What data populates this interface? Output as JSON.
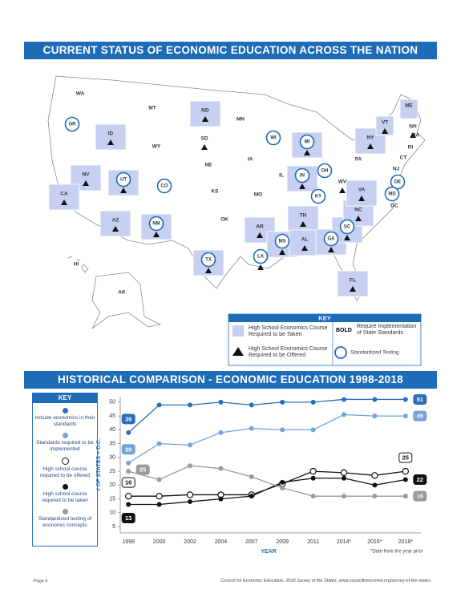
{
  "header": {
    "title": "CURRENT STATUS OF ECONOMIC EDUCATION ACROSS THE NATION"
  },
  "map": {
    "states": [
      {
        "label": "WA"
      },
      {
        "label": "OR",
        "testing": true
      },
      {
        "label": "ID",
        "taken": true,
        "offered": true
      },
      {
        "label": "MT"
      },
      {
        "label": "WY"
      },
      {
        "label": "NV",
        "taken": true,
        "offered": true
      },
      {
        "label": "CA",
        "taken": true,
        "offered": true
      },
      {
        "label": "UT",
        "taken": true,
        "offered": true,
        "testing": true
      },
      {
        "label": "CO",
        "testing": true
      },
      {
        "label": "AZ",
        "taken": true,
        "offered": true
      },
      {
        "label": "NM",
        "taken": true,
        "offered": true,
        "testing": true
      },
      {
        "label": "ND",
        "taken": true,
        "offered": true
      },
      {
        "label": "SD",
        "offered": true
      },
      {
        "label": "NE"
      },
      {
        "label": "KS"
      },
      {
        "label": "OK"
      },
      {
        "label": "TX",
        "taken": true,
        "offered": true,
        "testing": true
      },
      {
        "label": "MN"
      },
      {
        "label": "IA"
      },
      {
        "label": "MO"
      },
      {
        "label": "AR",
        "taken": true,
        "offered": true
      },
      {
        "label": "LA",
        "offered": true,
        "testing": true
      },
      {
        "label": "WI",
        "testing": true
      },
      {
        "label": "IL"
      },
      {
        "label": "MI",
        "taken": true,
        "offered": true,
        "testing": true
      },
      {
        "label": "IN",
        "taken": true,
        "offered": true,
        "testing": true
      },
      {
        "label": "OH",
        "testing": true
      },
      {
        "label": "KY",
        "testing": true
      },
      {
        "label": "TN",
        "taken": true,
        "offered": true
      },
      {
        "label": "MS",
        "taken": true,
        "offered": true,
        "testing": true
      },
      {
        "label": "AL",
        "taken": true,
        "offered": true
      },
      {
        "label": "GA",
        "taken": true,
        "offered": true,
        "testing": true
      },
      {
        "label": "FL",
        "taken": true,
        "offered": true
      },
      {
        "label": "SC",
        "taken": true,
        "offered": true,
        "testing": true
      },
      {
        "label": "NC",
        "taken": true,
        "offered": true
      },
      {
        "label": "VA",
        "taken": true,
        "offered": true
      },
      {
        "label": "WV",
        "offered": true
      },
      {
        "label": "PA"
      },
      {
        "label": "NY",
        "taken": true,
        "offered": true
      },
      {
        "label": "VT",
        "taken": true,
        "offered": true
      },
      {
        "label": "ME",
        "taken": true
      },
      {
        "label": "NH",
        "offered": true
      },
      {
        "label": "MA"
      },
      {
        "label": "RI"
      },
      {
        "label": "CT"
      },
      {
        "label": "NJ",
        "offered": true
      },
      {
        "label": "DE",
        "testing": true
      },
      {
        "label": "MD",
        "testing": true
      },
      {
        "label": "DC"
      },
      {
        "label": "HI"
      },
      {
        "label": "AK"
      }
    ],
    "key": {
      "title": "KEY",
      "taken": "High School Economics Course Required to be Taken",
      "bold_word": "BOLD",
      "bold": "Require Implementation of State Standards",
      "offered": "High School Economics Course Required to be Offered",
      "testing": "Standardized Testing"
    }
  },
  "chart_data": {
    "type": "line",
    "title": "HISTORICAL COMPARISON - ECONOMIC EDUCATION 1998-2018",
    "key_title": "KEY",
    "x_label": "YEAR",
    "y_label": "# OF STATES + D.C.",
    "note": "*Date from the year prior",
    "categories": [
      "1998",
      "2000",
      "2002",
      "2004",
      "2007",
      "2009",
      "2011",
      "2014*",
      "2016*",
      "2018*"
    ],
    "ylim": [
      3,
      52
    ],
    "yticks": [
      5,
      10,
      15,
      20,
      25,
      30,
      35,
      40,
      45,
      50
    ],
    "series": [
      {
        "name": "Include economics in their standards",
        "color": "#2a6ebb",
        "marker": "filled",
        "values": [
          39,
          49,
          49,
          50,
          49,
          50,
          50,
          51,
          51,
          51
        ]
      },
      {
        "name": "Standards required to be implemented",
        "color": "#74a3d8",
        "marker": "filled",
        "values": [
          28,
          35,
          34.5,
          39,
          40.5,
          40,
          40,
          45.5,
          45,
          45
        ]
      },
      {
        "name": "High school course required to be offered",
        "color": "#111111",
        "marker": "open",
        "values": [
          16,
          16,
          16.5,
          16.5,
          16.5,
          20.5,
          25,
          24.5,
          23.5,
          25
        ]
      },
      {
        "name": "High school course required to be taken",
        "color": "#111111",
        "marker": "filled",
        "values": [
          13,
          13,
          14,
          15,
          16,
          21,
          22.5,
          22.5,
          20,
          22
        ]
      },
      {
        "name": "Standardized testing of economic concepts",
        "color": "#9a9a9a",
        "marker": "filled",
        "values": [
          25,
          22,
          27,
          26,
          23,
          19,
          16,
          16,
          16,
          16
        ]
      }
    ]
  },
  "footer": {
    "page": "Page 6",
    "source": [
      "Council for Economic Education, ",
      "2018 Survey of the States",
      ", www.councilforeconed.org/survey-of-the-states"
    ]
  }
}
